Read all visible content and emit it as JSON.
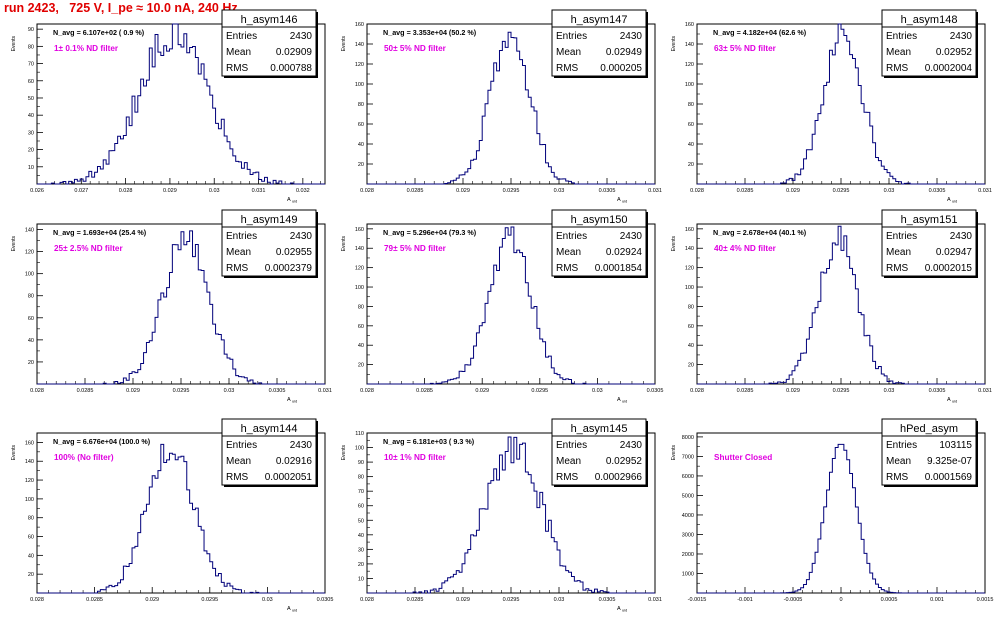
{
  "header": {
    "run_title": "run 2423,   725 V, I_pe ≈ 10.0 nA, 240 Hz"
  },
  "colors": {
    "histogram_line": "#00007a",
    "filter_label": "#e000e0",
    "title_text": "#e00000",
    "axes": "#000000"
  },
  "stats_labels": {
    "entries": "Entries",
    "mean": "Mean",
    "rms": "RMS"
  },
  "chart_data": [
    {
      "type": "bar",
      "name": "h_asym146",
      "navg": "N_avg = 6.107e+02 ( 0.9 %)",
      "filter_label": "1± 0.1% ND filter",
      "entries": "2430",
      "mean": "0.02909",
      "rms": "0.000788",
      "ylabel": "Events",
      "xlabel": "A_uid",
      "xlim": [
        0.026,
        0.0325
      ],
      "ylim": [
        0,
        93
      ],
      "ystep": 10,
      "xticks": [
        0.026,
        0.027,
        0.028,
        0.029,
        0.03,
        0.031,
        0.032
      ],
      "xtick_labels": [
        "0.026",
        "0.027",
        "0.028",
        "0.029",
        "0.03",
        "0.031",
        "0.032"
      ],
      "bin_mean": 0.02909,
      "bin_sigma": 0.000788,
      "peak": 88,
      "bins": 100,
      "seed": 146
    },
    {
      "type": "bar",
      "name": "h_asym147",
      "navg": "N_avg = 3.353e+04 (50.2 %)",
      "filter_label": "50± 5% ND filter",
      "entries": "2430",
      "mean": "0.02949",
      "rms": "0.000205",
      "ylabel": "Events",
      "xlabel": "A_uid",
      "xlim": [
        0.028,
        0.031
      ],
      "ylim": [
        0,
        160
      ],
      "ystep": 20,
      "xticks": [
        0.028,
        0.0285,
        0.029,
        0.0295,
        0.03,
        0.0305,
        0.031
      ],
      "xtick_labels": [
        "0.028",
        "0.0285",
        "0.029",
        "0.0295",
        "0.03",
        "0.0305",
        "0.031"
      ],
      "bin_mean": 0.02949,
      "bin_sigma": 0.000205,
      "peak": 150,
      "bins": 100,
      "seed": 147
    },
    {
      "type": "bar",
      "name": "h_asym148",
      "navg": "N_avg = 4.182e+04 (62.6 %)",
      "filter_label": "63± 5% ND filter",
      "entries": "2430",
      "mean": "0.02952",
      "rms": "0.0002004",
      "ylabel": "Events",
      "xlabel": "A_uid",
      "xlim": [
        0.028,
        0.031
      ],
      "ylim": [
        0,
        160
      ],
      "ystep": 20,
      "xticks": [
        0.028,
        0.0285,
        0.029,
        0.0295,
        0.03,
        0.0305,
        0.031
      ],
      "xtick_labels": [
        "0.028",
        "0.0285",
        "0.029",
        "0.0295",
        "0.03",
        "0.0305",
        "0.031"
      ],
      "bin_mean": 0.02952,
      "bin_sigma": 0.0002004,
      "peak": 152,
      "bins": 100,
      "seed": 148
    },
    {
      "type": "bar",
      "name": "h_asym149",
      "navg": "N_avg = 1.693e+04 (25.4 %)",
      "filter_label": "25± 2.5% ND filter",
      "entries": "2430",
      "mean": "0.02955",
      "rms": "0.0002379",
      "ylabel": "Events",
      "xlabel": "A_uid",
      "xlim": [
        0.028,
        0.031
      ],
      "ylim": [
        0,
        145
      ],
      "ystep": 20,
      "xticks": [
        0.028,
        0.0285,
        0.029,
        0.0295,
        0.03,
        0.0305,
        0.031
      ],
      "xtick_labels": [
        "0.028",
        "0.0285",
        "0.029",
        "0.0295",
        "0.03",
        "0.0305",
        "0.031"
      ],
      "bin_mean": 0.02955,
      "bin_sigma": 0.0002379,
      "peak": 132,
      "bins": 100,
      "seed": 149
    },
    {
      "type": "bar",
      "name": "h_asym150",
      "navg": "N_avg = 5.296e+04 (79.3 %)",
      "filter_label": "79± 5% ND filter",
      "entries": "2430",
      "mean": "0.02924",
      "rms": "0.0001854",
      "ylabel": "Events",
      "xlabel": "A_uid",
      "xlim": [
        0.028,
        0.0305
      ],
      "ylim": [
        0,
        165
      ],
      "ystep": 20,
      "xticks": [
        0.028,
        0.0285,
        0.029,
        0.0295,
        0.03,
        0.0305
      ],
      "xtick_labels": [
        "0.028",
        "0.0285",
        "0.029",
        "0.0295",
        "0.03",
        "0.0305"
      ],
      "bin_mean": 0.02924,
      "bin_sigma": 0.0001854,
      "peak": 150,
      "bins": 100,
      "seed": 150
    },
    {
      "type": "bar",
      "name": "h_asym151",
      "navg": "N_avg = 2.678e+04 (40.1 %)",
      "filter_label": "40± 4% ND filter",
      "entries": "2430",
      "mean": "0.02947",
      "rms": "0.0002015",
      "ylabel": "Events",
      "xlabel": "A_uid",
      "xlim": [
        0.028,
        0.031
      ],
      "ylim": [
        0,
        165
      ],
      "ystep": 20,
      "xticks": [
        0.028,
        0.0285,
        0.029,
        0.0295,
        0.03,
        0.0305,
        0.031
      ],
      "xtick_labels": [
        "0.028",
        "0.0285",
        "0.029",
        "0.0295",
        "0.03",
        "0.0305",
        "0.031"
      ],
      "bin_mean": 0.02947,
      "bin_sigma": 0.0002015,
      "peak": 150,
      "bins": 100,
      "seed": 151
    },
    {
      "type": "bar",
      "name": "h_asym144",
      "navg": "N_avg = 6.676e+04 (100.0 %)",
      "filter_label": "100% (No filter)",
      "entries": "2430",
      "mean": "0.02916",
      "rms": "0.0002051",
      "ylabel": "Events",
      "xlabel": "A_uid",
      "xlim": [
        0.028,
        0.0305
      ],
      "ylim": [
        0,
        170
      ],
      "ystep": 20,
      "xticks": [
        0.028,
        0.0285,
        0.029,
        0.0295,
        0.03,
        0.0305
      ],
      "xtick_labels": [
        "0.028",
        "0.0285",
        "0.029",
        "0.0295",
        "0.03",
        "0.0305"
      ],
      "bin_mean": 0.02916,
      "bin_sigma": 0.0002051,
      "peak": 155,
      "bins": 100,
      "seed": 144
    },
    {
      "type": "bar",
      "name": "h_asym145",
      "navg": "N_avg = 6.181e+03 ( 9.3 %)",
      "filter_label": "10± 1% ND filter",
      "entries": "2430",
      "mean": "0.02952",
      "rms": "0.0002966",
      "ylabel": "Events",
      "xlabel": "A_uid",
      "xlim": [
        0.028,
        0.031
      ],
      "ylim": [
        0,
        110
      ],
      "ystep": 10,
      "xticks": [
        0.028,
        0.0285,
        0.029,
        0.0295,
        0.03,
        0.0305,
        0.031
      ],
      "xtick_labels": [
        "0.028",
        "0.0285",
        "0.029",
        "0.0295",
        "0.03",
        "0.0305",
        "0.031"
      ],
      "bin_mean": 0.02952,
      "bin_sigma": 0.0002966,
      "peak": 100,
      "bins": 100,
      "seed": 145
    },
    {
      "type": "bar",
      "name": "hPed_asym",
      "navg": "",
      "filter_label": "Shutter Closed",
      "entries": "103115",
      "mean": "9.325e-07",
      "rms": "0.0001569",
      "ylabel": "Events",
      "xlabel": "",
      "xlim": [
        -0.0015,
        0.0015
      ],
      "ylim": [
        0,
        8200
      ],
      "ystep": 1000,
      "xticks": [
        -0.0015,
        -0.001,
        -0.0005,
        0,
        0.0005,
        0.001,
        0.0015
      ],
      "xtick_labels": [
        "-0.0015",
        "-0.001",
        "-0.0005",
        "0",
        "0.0005",
        "0.001",
        "0.0015"
      ],
      "bin_mean": 0.0,
      "bin_sigma": 0.0001569,
      "peak": 7700,
      "bins": 100,
      "seed": 999
    }
  ]
}
